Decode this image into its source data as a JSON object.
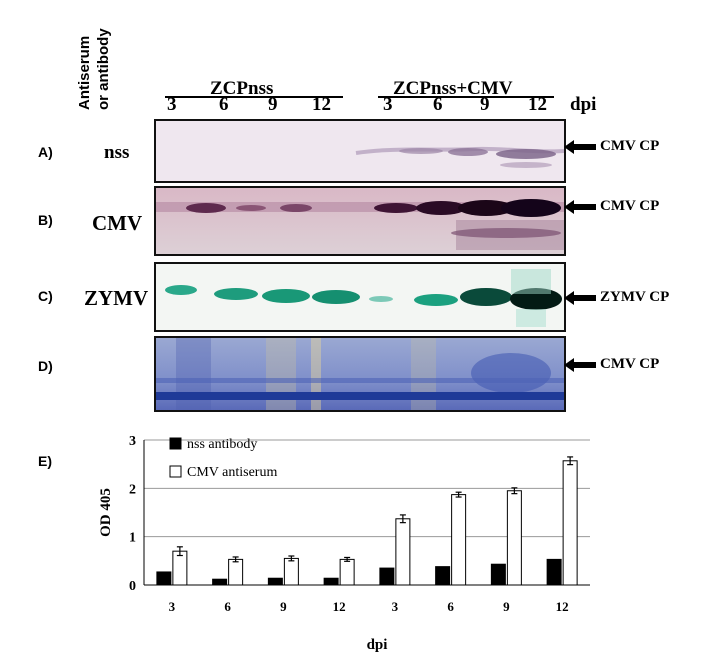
{
  "figure": {
    "antibody_header": [
      "Antiserum",
      "or antibody"
    ],
    "groups": [
      "ZCPnss",
      "ZCPnss+CMV"
    ],
    "lanes": [
      "3",
      "6",
      "9",
      "12",
      "3",
      "6",
      "9",
      "12"
    ],
    "dpi_label": "dpi",
    "panels": [
      {
        "letter": "A)",
        "row_label": "nss",
        "arrow_label": "CMV CP"
      },
      {
        "letter": "B)",
        "row_label": "CMV",
        "arrow_label": "CMV CP"
      },
      {
        "letter": "C)",
        "row_label": "ZYMV",
        "arrow_label": "ZYMV CP"
      },
      {
        "letter": "D)",
        "row_label": "",
        "arrow_label": "CMV CP"
      }
    ],
    "panel_e_letter": "E)"
  },
  "chart_data": {
    "type": "bar",
    "categories": [
      "3",
      "6",
      "9",
      "12",
      "3",
      "6",
      "9",
      "12"
    ],
    "series": [
      {
        "name": "nss antibody",
        "values": [
          0.27,
          0.12,
          0.14,
          0.14,
          0.35,
          0.38,
          0.43,
          0.53
        ],
        "color": "#000000"
      },
      {
        "name": "CMV antiserum",
        "values": [
          0.7,
          0.53,
          0.55,
          0.53,
          1.37,
          1.87,
          1.95,
          2.57
        ],
        "errors": [
          0.09,
          0.05,
          0.05,
          0.04,
          0.08,
          0.05,
          0.06,
          0.08
        ],
        "color": "#ffffff"
      }
    ],
    "ylabel": "OD 405",
    "xlabel": "dpi",
    "ylim": [
      0,
      3
    ],
    "yticks": [
      "0",
      "1",
      "2",
      "3"
    ],
    "grid": true,
    "legend_position": "top-left"
  }
}
